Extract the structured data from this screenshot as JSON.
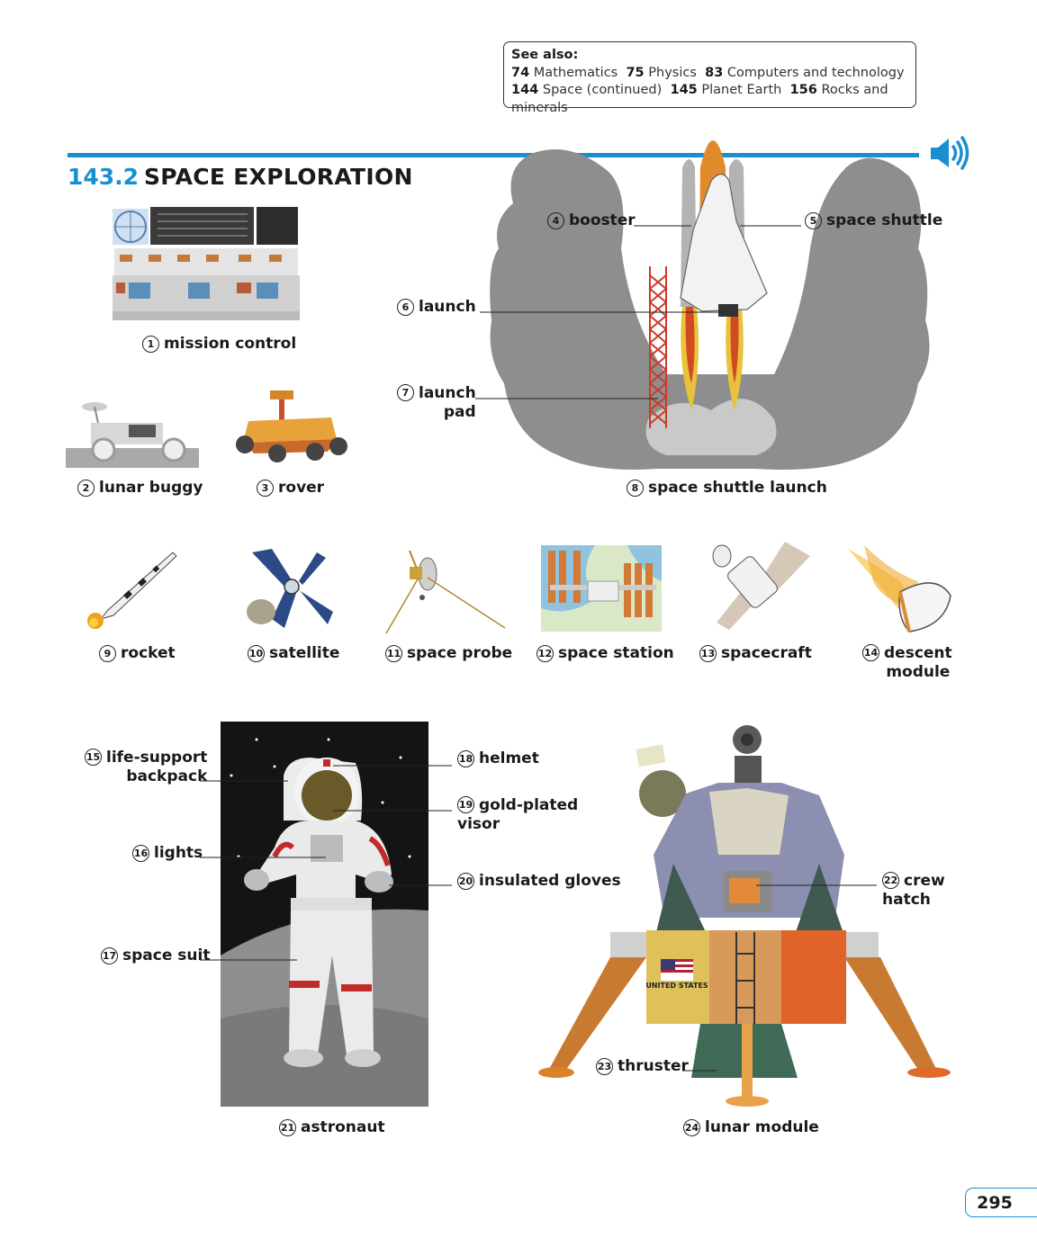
{
  "see_also": {
    "heading": "See also:",
    "links": [
      {
        "num": "74",
        "text": "Mathematics"
      },
      {
        "num": "75",
        "text": "Physics"
      },
      {
        "num": "83",
        "text": "Computers and technology"
      },
      {
        "num": "144",
        "text": "Space (continued)"
      },
      {
        "num": "145",
        "text": "Planet Earth"
      },
      {
        "num": "156",
        "text": "Rocks and minerals"
      }
    ]
  },
  "section": {
    "number": "143.2",
    "title": "SPACE EXPLORATION"
  },
  "items": [
    {
      "n": "1",
      "label": "mission control"
    },
    {
      "n": "2",
      "label": "lunar buggy"
    },
    {
      "n": "3",
      "label": "rover"
    },
    {
      "n": "4",
      "label": "booster"
    },
    {
      "n": "5",
      "label": "space shuttle"
    },
    {
      "n": "6",
      "label": "launch"
    },
    {
      "n": "7",
      "label": "launch",
      "label2": "pad"
    },
    {
      "n": "8",
      "label": "space shuttle launch"
    },
    {
      "n": "9",
      "label": "rocket"
    },
    {
      "n": "10",
      "label": "satellite"
    },
    {
      "n": "11",
      "label": "space probe"
    },
    {
      "n": "12",
      "label": "space station"
    },
    {
      "n": "13",
      "label": "spacecraft"
    },
    {
      "n": "14",
      "label": "descent",
      "label2": "module"
    },
    {
      "n": "15",
      "label": "life-support",
      "label2": "backpack"
    },
    {
      "n": "16",
      "label": "lights"
    },
    {
      "n": "17",
      "label": "space suit"
    },
    {
      "n": "18",
      "label": "helmet"
    },
    {
      "n": "19",
      "label": "gold-plated",
      "label2": "visor"
    },
    {
      "n": "20",
      "label": "insulated gloves"
    },
    {
      "n": "21",
      "label": "astronaut"
    },
    {
      "n": "22",
      "label": "crew",
      "label2": "hatch"
    },
    {
      "n": "23",
      "label": "thruster"
    },
    {
      "n": "24",
      "label": "lunar module"
    }
  ],
  "flag_text": "UNITED STATES",
  "page_number": "295",
  "colors": {
    "accent": "#1a8fd0"
  }
}
